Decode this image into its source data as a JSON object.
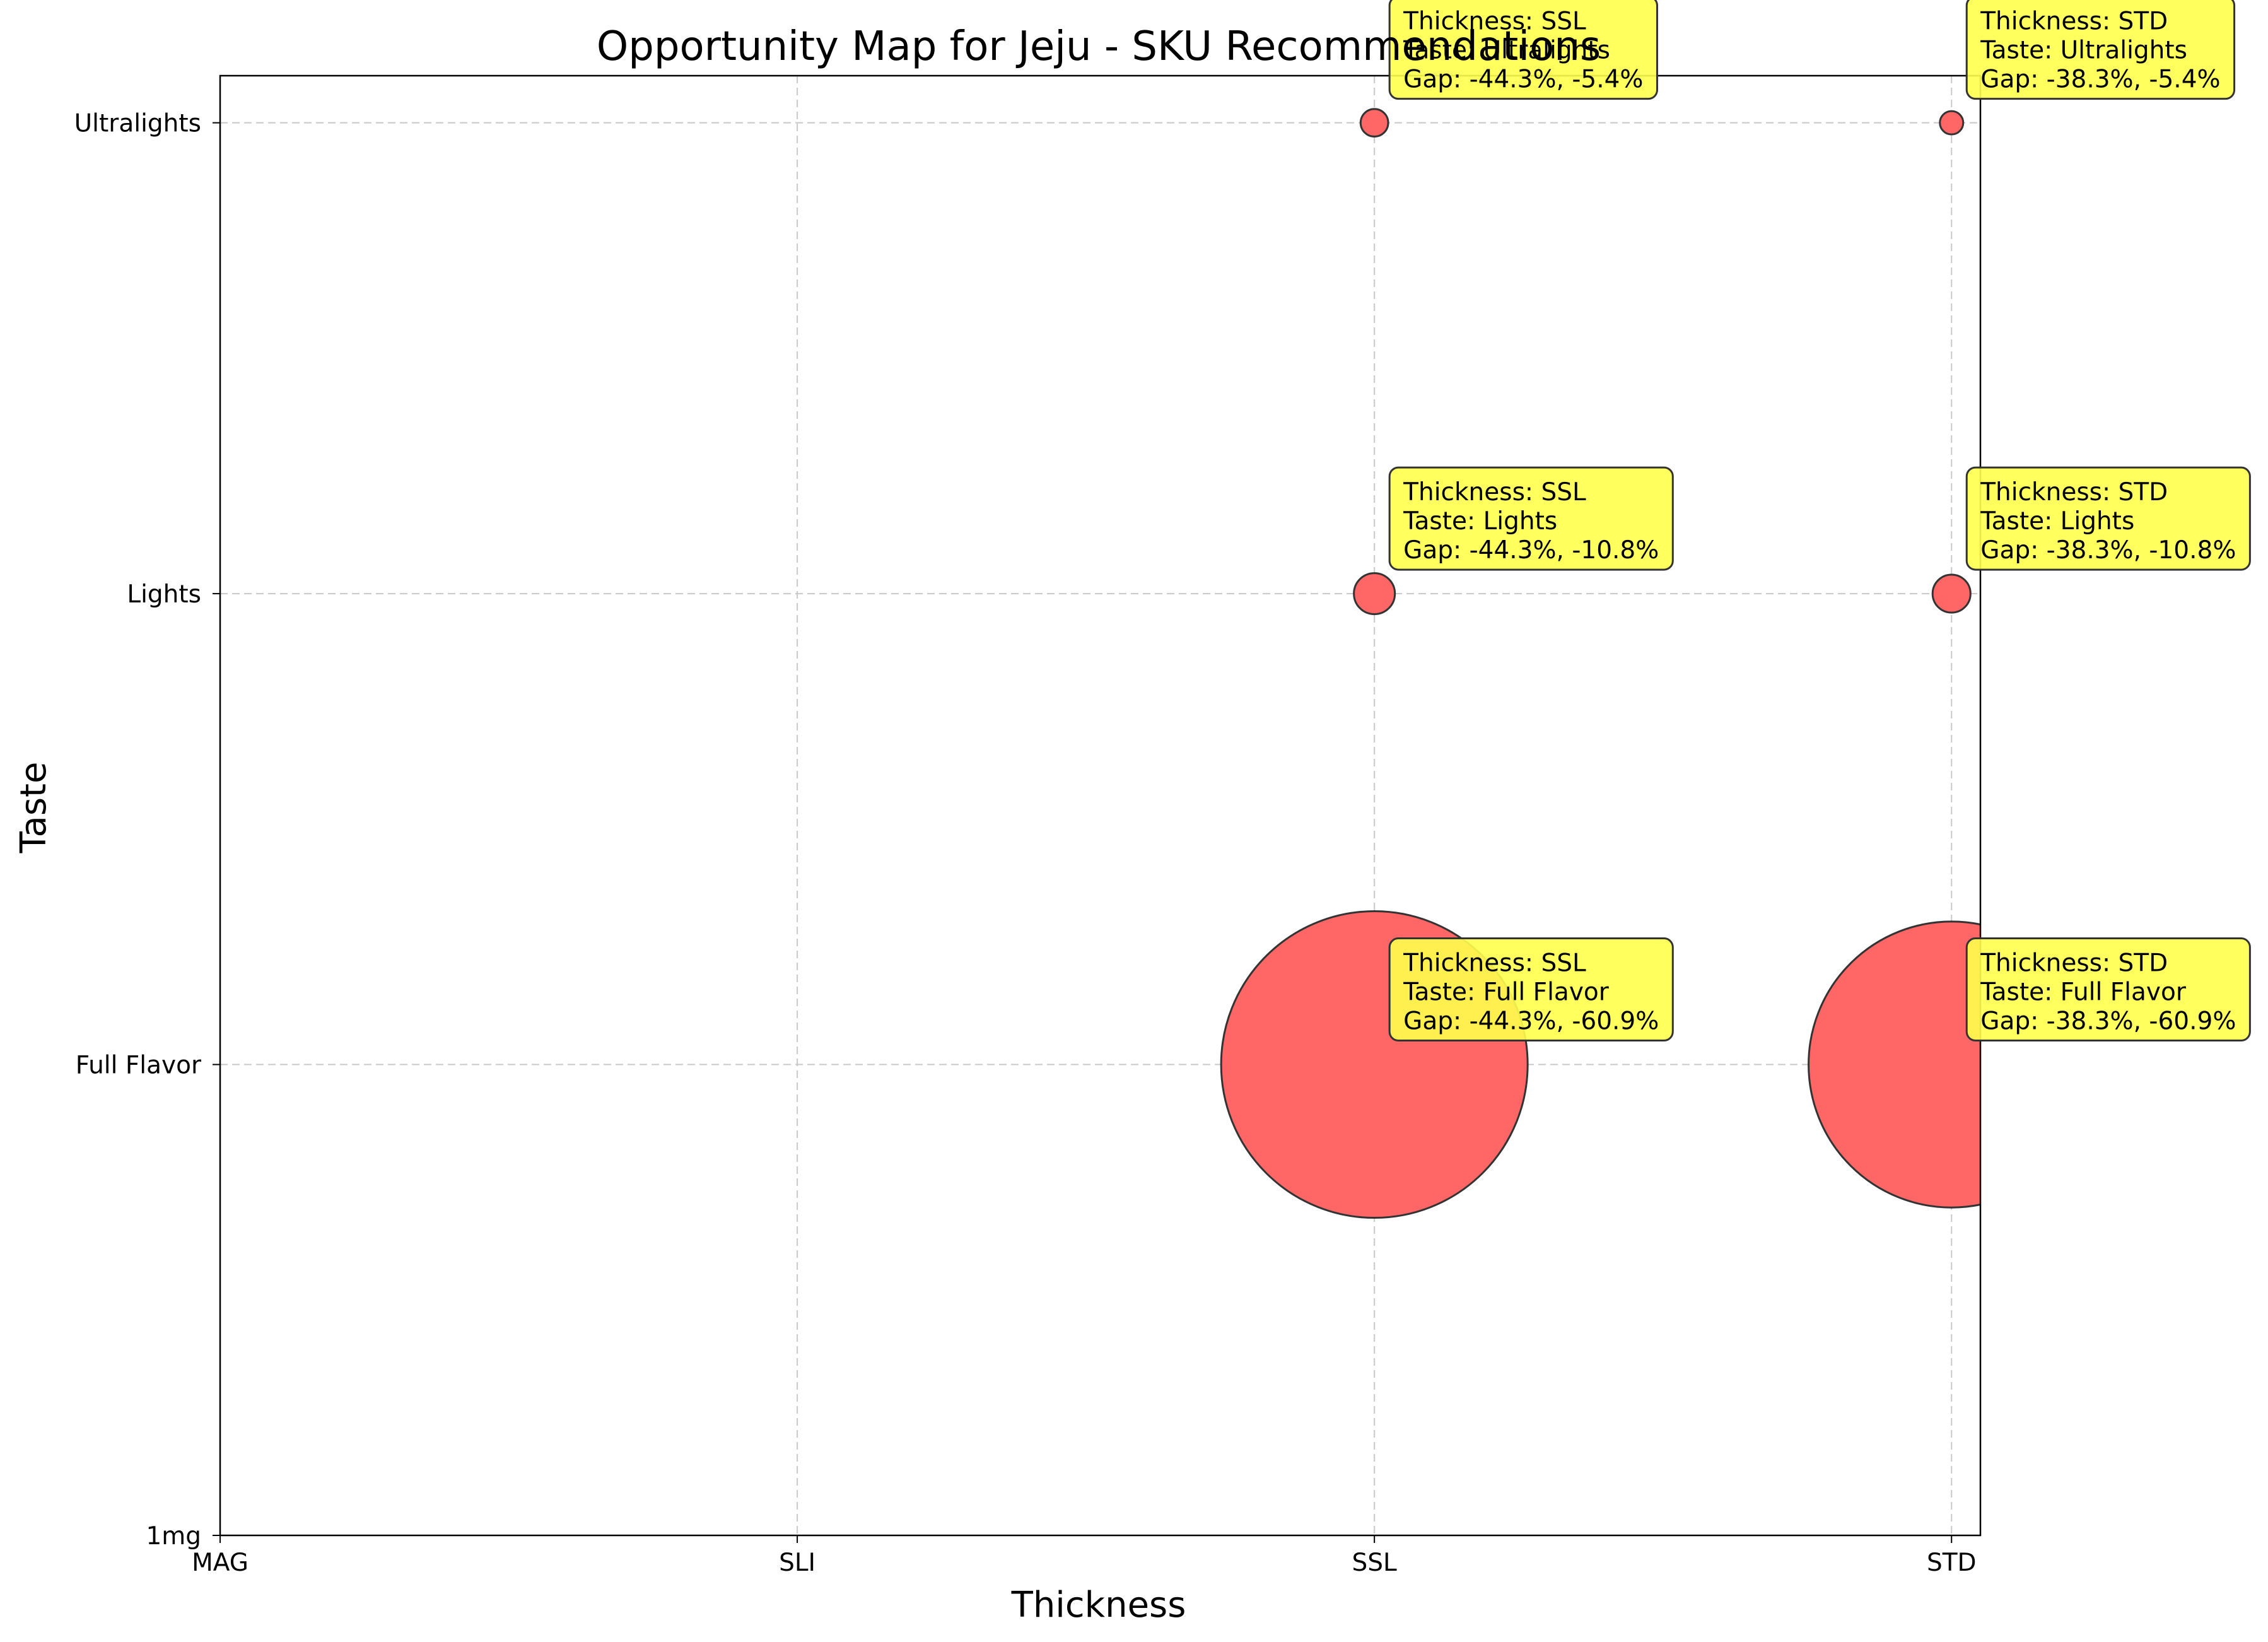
{
  "chart_data": {
    "type": "scatter",
    "title": "Opportunity Map for Jeju - SKU Recommendations",
    "xlabel": "Thickness",
    "ylabel": "Taste",
    "x_categories": [
      "MAG",
      "SLI",
      "SSL",
      "STD"
    ],
    "y_categories": [
      "1mg",
      "Full Flavor",
      "Lights",
      "Ultralights"
    ],
    "xlim": [
      0,
      3.05
    ],
    "ylim": [
      0,
      3.1
    ],
    "grid": true,
    "colors": {
      "bubble_fill": "#ff6666",
      "bubble_edge": "#333333",
      "annotation_fill": "#ffff4d",
      "annotation_edge": "#333333",
      "grid": "#c8c8c8"
    },
    "points": [
      {
        "thickness": "SSL",
        "taste": "Ultralights",
        "gap_thickness": -44.3,
        "gap_taste": -5.4,
        "size_rel": 0.0081,
        "label": [
          "Thickness: SSL",
          "Taste: Ultralights",
          "Gap: -44.3%, -5.4%"
        ]
      },
      {
        "thickness": "STD",
        "taste": "Ultralights",
        "gap_thickness": -38.3,
        "gap_taste": -5.4,
        "size_rel": 0.0058,
        "label": [
          "Thickness: STD",
          "Taste: Ultralights",
          "Gap: -38.3%, -5.4%"
        ]
      },
      {
        "thickness": "SSL",
        "taste": "Lights",
        "gap_thickness": -44.3,
        "gap_taste": -10.8,
        "size_rel": 0.0179,
        "label": [
          "Thickness: SSL",
          "Taste: Lights",
          "Gap: -44.3%, -10.8%"
        ]
      },
      {
        "thickness": "STD",
        "taste": "Lights",
        "gap_thickness": -38.3,
        "gap_taste": -10.8,
        "size_rel": 0.0153,
        "label": [
          "Thickness: STD",
          "Taste: Lights",
          "Gap: -38.3%, -10.8%"
        ]
      },
      {
        "thickness": "SSL",
        "taste": "Full Flavor",
        "gap_thickness": -44.3,
        "gap_taste": -60.9,
        "size_rel": 1.0,
        "label": [
          "Thickness: SSL",
          "Taste: Full Flavor",
          "Gap: -44.3%, -60.9%"
        ]
      },
      {
        "thickness": "STD",
        "taste": "Full Flavor",
        "gap_thickness": -38.3,
        "gap_taste": -60.9,
        "size_rel": 0.87,
        "label": [
          "Thickness: STD",
          "Taste: Full Flavor",
          "Gap: -38.3%, -60.9%"
        ]
      }
    ]
  }
}
